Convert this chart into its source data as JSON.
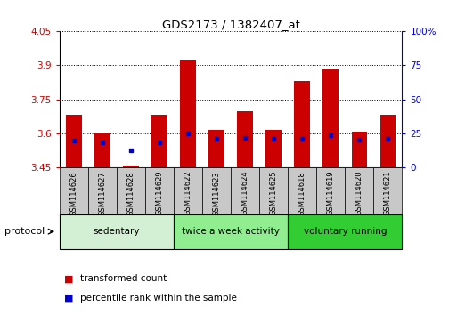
{
  "title": "GDS2173 / 1382407_at",
  "samples": [
    "GSM114626",
    "GSM114627",
    "GSM114628",
    "GSM114629",
    "GSM114622",
    "GSM114623",
    "GSM114624",
    "GSM114625",
    "GSM114618",
    "GSM114619",
    "GSM114620",
    "GSM114621"
  ],
  "bar_tops": [
    3.68,
    3.6,
    3.455,
    3.68,
    3.925,
    3.615,
    3.695,
    3.615,
    3.83,
    3.885,
    3.605,
    3.68
  ],
  "bar_bottoms": [
    3.45,
    3.45,
    3.45,
    3.45,
    3.45,
    3.45,
    3.45,
    3.45,
    3.45,
    3.45,
    3.45,
    3.45
  ],
  "blue_dot_y": [
    3.565,
    3.558,
    3.525,
    3.558,
    3.6,
    3.574,
    3.577,
    3.574,
    3.574,
    3.59,
    3.572,
    3.574
  ],
  "ylim": [
    3.45,
    4.05
  ],
  "yticks": [
    3.45,
    3.6,
    3.75,
    3.9,
    4.05
  ],
  "ytick_labels": [
    "3.45",
    "3.6",
    "3.75",
    "3.9",
    "4.05"
  ],
  "right_yticks": [
    0,
    25,
    50,
    75,
    100
  ],
  "right_ytick_labels": [
    "0",
    "25",
    "50",
    "75",
    "100%"
  ],
  "groups": [
    {
      "label": "sedentary",
      "start": 0,
      "end": 4,
      "color": "#d4f0d4"
    },
    {
      "label": "twice a week activity",
      "start": 4,
      "end": 8,
      "color": "#90ee90"
    },
    {
      "label": "voluntary running",
      "start": 8,
      "end": 12,
      "color": "#32cd32"
    }
  ],
  "bar_color": "#cc0000",
  "blue_dot_color": "#0000cc",
  "bar_width": 0.55,
  "group_label": "protocol",
  "legend_items": [
    {
      "label": "transformed count",
      "color": "#cc0000"
    },
    {
      "label": "percentile rank within the sample",
      "color": "#0000cc"
    }
  ],
  "tick_color_left": "#cc0000",
  "tick_color_right": "#0000cc",
  "background_color": "#ffffff",
  "xticklabel_bg": "#c8c8c8"
}
